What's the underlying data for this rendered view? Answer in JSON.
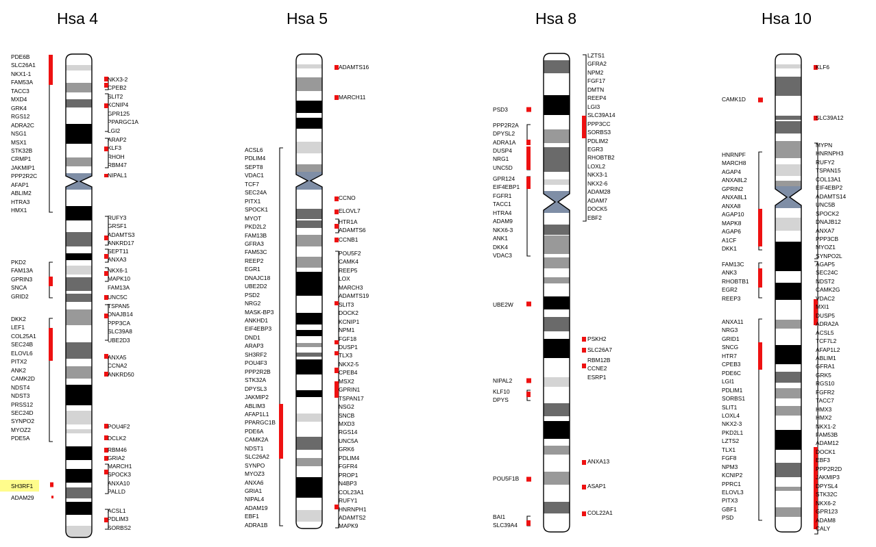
{
  "chromosomes": [
    {
      "id": "hsa4",
      "title": "Hsa 4",
      "groups": [
        {
          "side": "left",
          "genes": [
            "PDE6B",
            "SLC26A1",
            "NKX1-1",
            "FAM53A",
            "TACC3",
            "MXD4",
            "GRK4",
            "RGS12",
            "ADRA2C",
            "NSG1",
            "MSX1",
            "STK32B",
            "CRMP1",
            "JAKMIP1",
            "PPP2R2C",
            "AFAP1",
            "ABLIM2",
            "HTRA3",
            "HMX1"
          ]
        },
        {
          "side": "right",
          "genes": [
            "NKX3-2",
            "CPEB2"
          ]
        },
        {
          "side": "right",
          "genes": [
            "SLIT2",
            "KCNIP4",
            "GPR125",
            "PPARGC1A",
            "LGI2"
          ]
        },
        {
          "side": "right",
          "genes": [
            "ARAP2",
            "KLF3",
            "RHOH",
            "RBM47"
          ]
        },
        {
          "side": "right",
          "genes": [
            "NIPAL1"
          ]
        },
        {
          "side": "right",
          "genes": [
            "RUFY3",
            "GRSF1",
            "ADAMTS3",
            "ANKRD17"
          ]
        },
        {
          "side": "right",
          "genes": [
            "SEPT11",
            "ANXA3"
          ]
        },
        {
          "side": "left",
          "genes": [
            "PKD2",
            "FAM13A",
            "GPRIN3",
            "SNCA",
            "GRID2"
          ]
        },
        {
          "side": "right",
          "genes": [
            "NKX6-1",
            "MAPK10",
            "FAM13A"
          ]
        },
        {
          "side": "right",
          "genes": [
            "UNC5C"
          ]
        },
        {
          "side": "right",
          "genes": [
            "TSPAN5",
            "DNAJB14",
            "PPP3CA",
            "SLC39A8",
            "UBE2D3"
          ]
        },
        {
          "side": "left",
          "genes": [
            "DKK2",
            "LEF1",
            "COL25A1",
            "SEC24B",
            "ELOVL6",
            "PITX2",
            "ANK2",
            "CAMK2D",
            "NDST4",
            "NDST3",
            "PRSS12",
            "SEC24D",
            "SYNPO2",
            "MYOZ2",
            "PDE5A"
          ]
        },
        {
          "side": "right",
          "genes": [
            "ANXA5",
            "CCNA2",
            "ANKRD50"
          ]
        },
        {
          "side": "right",
          "genes": [
            "POU4F2"
          ]
        },
        {
          "side": "right",
          "genes": [
            "DCLK2"
          ]
        },
        {
          "side": "right",
          "genes": [
            "RBM46",
            "GRIA2"
          ]
        },
        {
          "side": "right",
          "genes": [
            "MARCH1",
            "SPOCK3",
            "ANXA10",
            "PALLD"
          ]
        },
        {
          "side": "left",
          "genes": [
            "SH3RF1"
          ],
          "highlight": true
        },
        {
          "side": "left",
          "genes": [
            "ADAM29"
          ]
        },
        {
          "side": "right",
          "genes": [
            "ACSL1",
            "PDLIM3",
            "SORBS2"
          ]
        }
      ]
    },
    {
      "id": "hsa5",
      "title": "Hsa 5",
      "groups": [
        {
          "side": "right",
          "genes": [
            "ADAMTS16"
          ]
        },
        {
          "side": "right",
          "genes": [
            "MARCH11"
          ]
        },
        {
          "side": "left",
          "genes": [
            "ACSL6",
            "PDLIM4",
            "SEPT8",
            "VDAC1",
            "TCF7",
            "SEC24A",
            "PITX1",
            "SPOCK1",
            "MYOT",
            "PKD2L2",
            "FAM13B",
            "GFRA3",
            "FAM53C",
            "REEP2",
            "EGR1",
            "DNAJC18",
            "UBE2D2",
            "PSD2",
            "NRG2",
            "MASK-BP3",
            "ANKHD1",
            "EIF4EBP3",
            "DND1",
            "ARAP3",
            "SH3RF2",
            "POU4F3",
            "PPP2R2B",
            "STK32A",
            "DPYSL3",
            "JAKMIP2",
            "ABLIM3",
            "AFAP1L1",
            "PPARGC1B",
            "PDE6A",
            "CAMK2A",
            "NDST1",
            "SLC26A2",
            "SYNPO",
            "MYOZ3",
            "ANXA6",
            "GRIA1",
            "NIPAL4",
            "ADAM19",
            "EBF1",
            "ADRA1B"
          ]
        },
        {
          "side": "right",
          "genes": [
            "CCNO"
          ]
        },
        {
          "side": "right",
          "genes": [
            "ELOVL7"
          ]
        },
        {
          "side": "right",
          "genes": [
            "HTR1A",
            "ADAMTS6"
          ]
        },
        {
          "side": "right",
          "genes": [
            "CCNB1"
          ]
        },
        {
          "side": "right",
          "genes": [
            "POU5F2",
            "CAMK4",
            "REEP5",
            "LOX",
            "MARCH3",
            "ADAMTS19",
            "SLIT3",
            "DOCK2",
            "KCNIP1",
            "NPM1",
            "FGF18",
            "DUSP1",
            "TLX3",
            "NKX2-5",
            "CPEB4",
            "MSX2",
            "GPRIN1",
            "TSPAN17",
            "NSG2",
            "SNCB",
            "MXD3",
            "RGS14",
            "UNC5A",
            "GRK6",
            "PDLIM4",
            "FGFR4",
            "PROP1",
            "N4BP3",
            "COL23A1",
            "RUFY1",
            "HNRNPH1",
            "ADAMTS2",
            "MAPK9"
          ]
        }
      ]
    },
    {
      "id": "hsa8",
      "title": "Hsa 8",
      "groups": [
        {
          "side": "right",
          "genes": [
            "LZTS1",
            "GFRA2",
            "NPM2",
            "FGF17",
            "DMTN",
            "REEP4",
            "LGI3",
            "SLC39A14",
            "PPP3CC",
            "SORBS3",
            "PDLIM2",
            "EGR3",
            "RHOBTB2",
            "LOXL2",
            "NKX3-1",
            "NKX2-6",
            "ADAM28",
            "ADAM7",
            "DOCK5",
            "EBF2"
          ]
        },
        {
          "side": "left",
          "genes": [
            "PSD3"
          ]
        },
        {
          "side": "left",
          "genes": [
            "PPP2R2A",
            "DPYSL2",
            "ADRA1A"
          ]
        },
        {
          "side": "left",
          "genes": [
            "DUSP4",
            "NRG1",
            "UNC5D"
          ]
        },
        {
          "side": "left",
          "genes": [
            "GPR124",
            "EIF4EBP1",
            "FGFR1",
            "TACC1",
            "HTRA4",
            "ADAM9",
            "NKX6-3",
            "ANK1",
            "DKK4",
            "VDAC3"
          ]
        },
        {
          "side": "left",
          "genes": [
            "UBE2W"
          ]
        },
        {
          "side": "right",
          "genes": [
            "PSKH2"
          ]
        },
        {
          "side": "right",
          "genes": [
            "SLC26A7"
          ]
        },
        {
          "side": "right",
          "genes": [
            "RBM12B",
            "CCNE2",
            "ESRP1"
          ]
        },
        {
          "side": "left",
          "genes": [
            "NIPAL2"
          ]
        },
        {
          "side": "left",
          "genes": [
            "KLF10",
            "DPYS"
          ]
        },
        {
          "side": "right",
          "genes": [
            "ANXA13"
          ]
        },
        {
          "side": "left",
          "genes": [
            "POU5F1B"
          ]
        },
        {
          "side": "right",
          "genes": [
            "ASAP1"
          ]
        },
        {
          "side": "right",
          "genes": [
            "COL22A1"
          ]
        },
        {
          "side": "left",
          "genes": [
            "BAI1",
            "SLC39A4"
          ]
        }
      ]
    },
    {
      "id": "hsa10",
      "title": "Hsa 10",
      "groups": [
        {
          "side": "right",
          "genes": [
            "KLF6"
          ]
        },
        {
          "side": "left",
          "genes": [
            "CAMK1D"
          ]
        },
        {
          "side": "right",
          "genes": [
            "SLC39A12"
          ]
        },
        {
          "side": "right",
          "genes": [
            "MYPN",
            "HNRNPH3",
            "RUFY2",
            "TSPAN15",
            "COL13A1",
            "EIF4EBP2",
            "ADAMTS14",
            "UNC5B",
            "SPOCK2",
            "DNAJB12",
            "ANXA7",
            "PPP3CB",
            "MYOZ1",
            "SYNPO2L"
          ]
        },
        {
          "side": "left",
          "genes": [
            "HNRNPF",
            "MARCH8",
            "AGAP4",
            "ANXA8L2",
            "GPRIN2",
            "ANXA8L1",
            "ANXA8",
            "AGAP10",
            "MAPK8",
            "AGAP6",
            "A1CF",
            "DKK1"
          ]
        },
        {
          "side": "left",
          "genes": [
            "FAM13C",
            "ANK3",
            "RHOBTB1",
            "EGR2",
            "REEP3"
          ]
        },
        {
          "side": "right",
          "genes": [
            "AGAP5",
            "SEC24C",
            "NDST2",
            "CAMK2G",
            "VDAC2",
            "MXI1",
            "DUSP5",
            "ADRA2A",
            "ACSL5",
            "TCF7L2",
            "AFAP1L2",
            "ABLIM1",
            "GFRA1",
            "GRK5",
            "RGS10",
            "FGFR2",
            "TACC7",
            "HMX3",
            "HMX2",
            "NKX1-2",
            "FAM53B",
            "ADAM12",
            "DOCK1",
            "EBF3",
            "PPP2R2D",
            "JAKMIP3",
            "DPYSL4",
            "STK32C",
            "NKX6-2",
            "GPR123",
            "ADAM8",
            "CALY"
          ]
        },
        {
          "side": "left",
          "genes": [
            "ANXA11",
            "NRG3",
            "GRID1",
            "SNCG",
            "HTR7",
            "CPEB3",
            "PDE6C",
            "LGI1",
            "PDLIM1",
            "SORBS1",
            "SLIT1",
            "LOXL4",
            "NKX2-3",
            "PKD2L1",
            "LZTS2",
            "TLX1",
            "FGF8",
            "NPM3",
            "KCNIP2",
            "PPRC1",
            "ELOVL3",
            "PITX3",
            "GBF1",
            "PSD"
          ]
        }
      ]
    }
  ]
}
